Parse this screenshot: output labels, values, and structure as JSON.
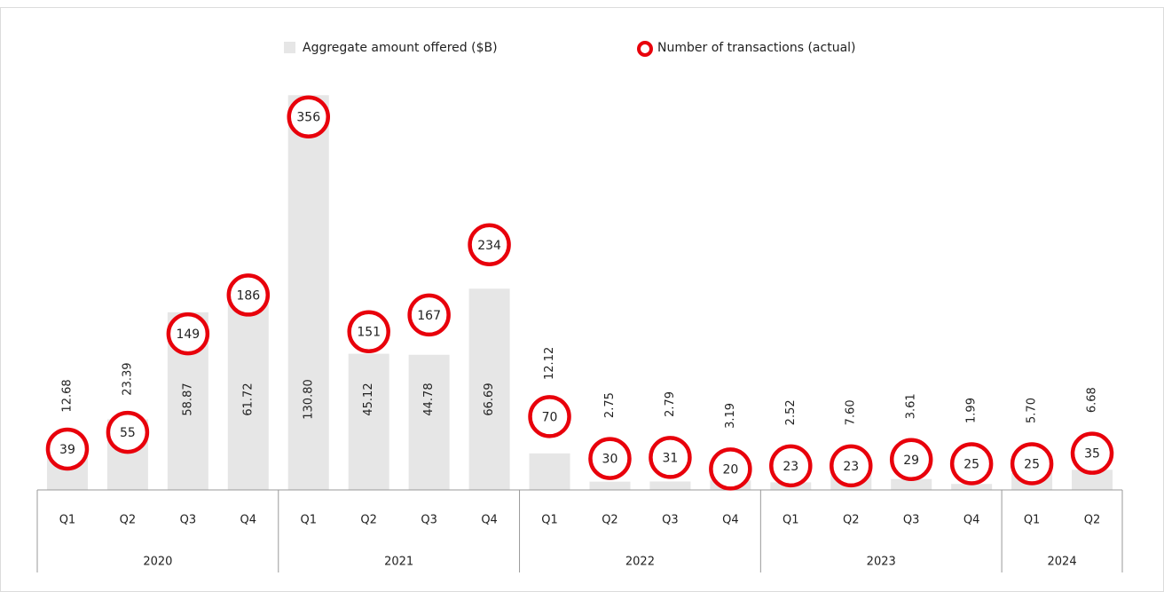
{
  "chart_data": {
    "type": "bar",
    "groups": [
      {
        "name": "2020",
        "categories": [
          "Q1",
          "Q2",
          "Q3",
          "Q4"
        ]
      },
      {
        "name": "2021",
        "categories": [
          "Q1",
          "Q2",
          "Q3",
          "Q4"
        ]
      },
      {
        "name": "2022",
        "categories": [
          "Q1",
          "Q2",
          "Q3",
          "Q4"
        ]
      },
      {
        "name": "2023",
        "categories": [
          "Q1",
          "Q2",
          "Q3",
          "Q4"
        ]
      },
      {
        "name": "2024",
        "categories": [
          "Q1",
          "Q2"
        ]
      }
    ],
    "series": [
      {
        "name": "Aggregate amount offered ($B)",
        "type": "bar",
        "color": "#e6e6e6",
        "values": [
          12.68,
          23.39,
          58.87,
          61.72,
          130.8,
          45.12,
          44.78,
          66.69,
          12.12,
          2.75,
          2.79,
          3.19,
          2.52,
          7.6,
          3.61,
          1.99,
          5.7,
          6.68
        ],
        "value_labels": [
          "12.68",
          "23.39",
          "58.87",
          "61.72",
          "130.80",
          "45.12",
          "44.78",
          "66.69",
          "12.12",
          "2.75",
          "2.79",
          "3.19",
          "2.52",
          "7.60",
          "3.61",
          "1.99",
          "5.70",
          "6.68"
        ]
      },
      {
        "name": "Number of transactions (actual)",
        "type": "circle",
        "color": "#e8000b",
        "axis": "y2",
        "values": [
          39,
          55,
          149,
          186,
          356,
          151,
          167,
          234,
          70,
          30,
          31,
          20,
          23,
          23,
          29,
          25,
          25,
          35
        ]
      }
    ],
    "ylim": [
      0,
      150
    ],
    "y2lim": [
      0,
      432
    ]
  }
}
